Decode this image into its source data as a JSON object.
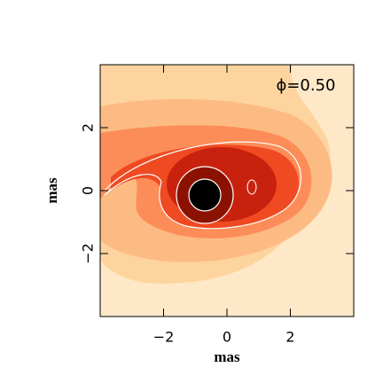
{
  "chart_data": {
    "type": "contour",
    "annotation": "ϕ=0.50",
    "xlabel": "mas",
    "ylabel": "mas",
    "xlim": [
      -4,
      4
    ],
    "ylim": [
      -4,
      4
    ],
    "xticks": [
      {
        "value": -2,
        "label": "−2"
      },
      0,
      2
    ],
    "yticks": [
      {
        "value": -2,
        "label": "−2"
      },
      0,
      2
    ]
  }
}
